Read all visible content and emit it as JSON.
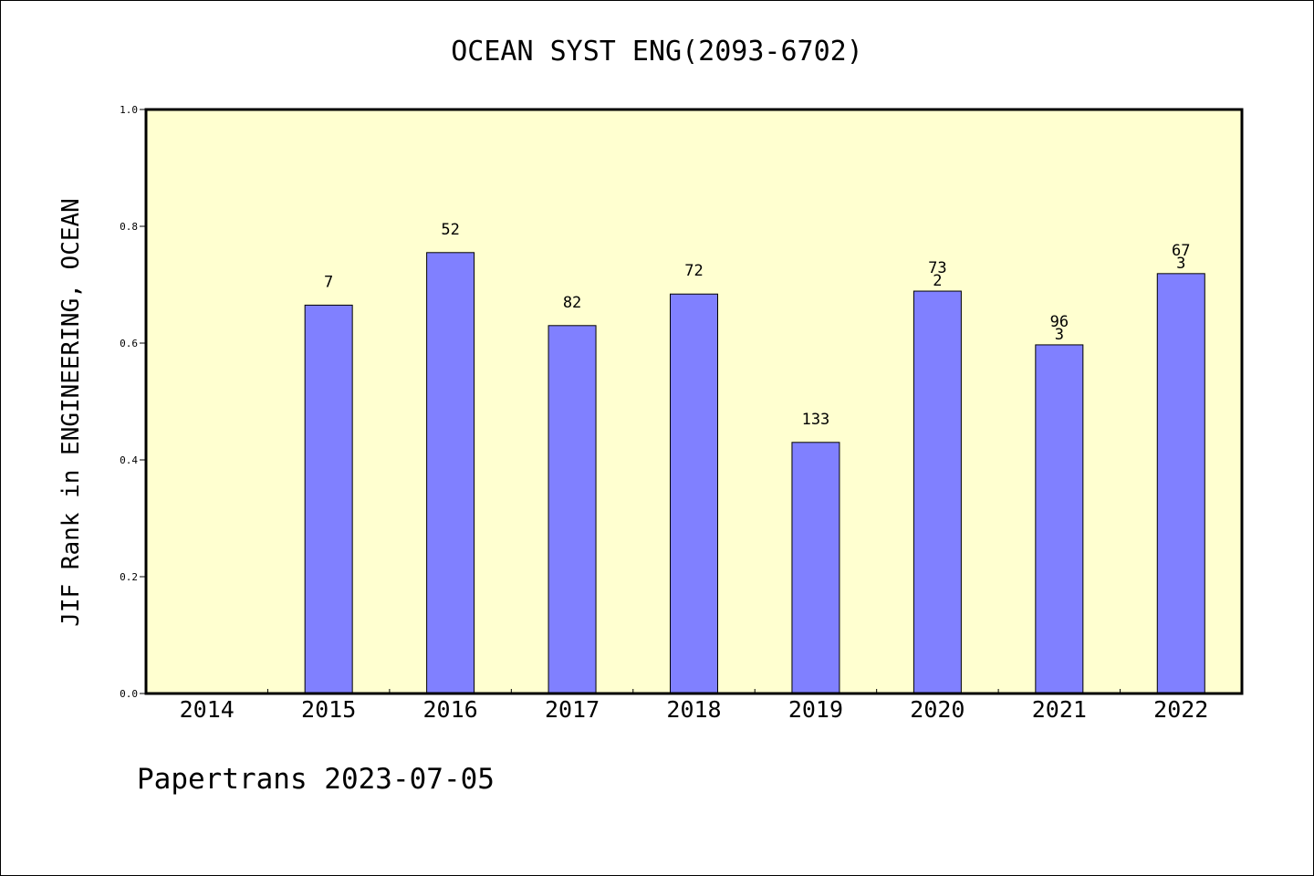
{
  "chart_data": {
    "type": "bar",
    "title": "OCEAN SYST ENG(2093-6702)",
    "ylabel": "JIF Rank in ENGINEERING, OCEAN",
    "xlabel": "",
    "categories": [
      "2014",
      "2015",
      "2016",
      "2017",
      "2018",
      "2019",
      "2020",
      "2021",
      "2022"
    ],
    "values": [
      null,
      0.665,
      0.755,
      0.63,
      0.684,
      0.43,
      0.689,
      0.597,
      0.719
    ],
    "data_labels": [
      "",
      "7",
      "52",
      "82",
      "72",
      "133",
      "73\n2",
      "96\n3",
      "67\n3"
    ],
    "ylim": [
      0,
      1.0
    ],
    "yticks": [
      "0.0",
      "0.2",
      "0.4",
      "0.6",
      "0.8",
      "1.0"
    ],
    "grid": false,
    "colors": {
      "plot_background": "#ffffd0",
      "bar_fill": "#8080ff",
      "bar_stroke": "#000000"
    }
  },
  "footer": "Papertrans 2023-07-05"
}
